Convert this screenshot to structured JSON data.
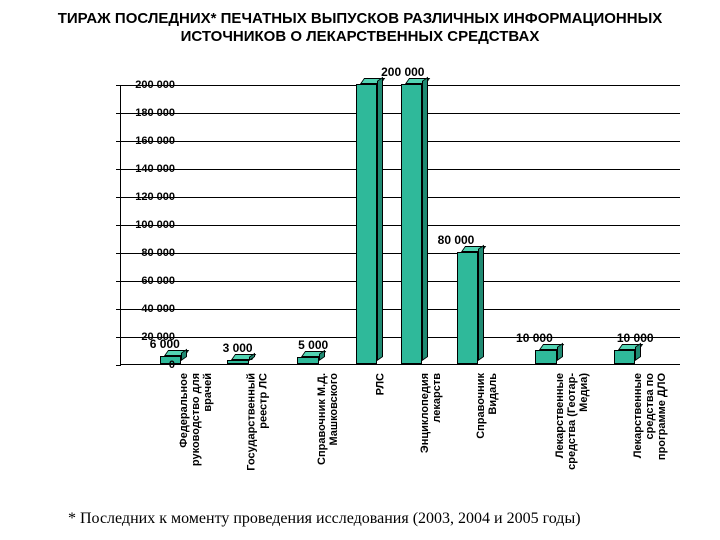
{
  "title": "ТИРАЖ ПОСЛЕДНИХ* ПЕЧАТНЫХ ВЫПУСКОВ РАЗЛИЧНЫХ ИНФОРМАЦИОННЫХ ИСТОЧНИКОВ О ЛЕКАРСТВЕННЫХ СРЕДСТВАХ",
  "footnote": "* Последних к моменту проведения исследования (2003, 2004 и 2005 годы)",
  "chart": {
    "type": "bar",
    "bar_fill": "#2fb99a",
    "bar_side": "#1f8a72",
    "bar_top": "#52d4b3",
    "background_color": "#ffffff",
    "gridline_color": "#000000",
    "title_fontsize": 15,
    "y_label_fontsize": 11,
    "data_label_fontsize": 12,
    "x_label_fontsize": 11,
    "footnote_fontsize": 16,
    "ylim": [
      0,
      200000
    ],
    "ytick_step": 20000,
    "y_ticks": [
      "0",
      "20 000",
      "40 000",
      "60 000",
      "80 000",
      "100 000",
      "120 000",
      "140 000",
      "160 000",
      "180 000",
      "200 000"
    ],
    "bar_width_pct": 3.8,
    "categories": [
      {
        "line1": "Федеральное",
        "line2": "руководство для",
        "line3": "врачей"
      },
      {
        "line1": "Государственный",
        "line2": "реестр ЛС"
      },
      {
        "line1": "Справочник М.Д.",
        "line2": "Машковского"
      },
      {
        "line1": "РЛС"
      },
      {
        "line1": "Энциклопедия",
        "line2": "лекарств"
      },
      {
        "line1": "Справочник",
        "line2": "Видаль"
      },
      {
        "line1": "Лекарственные",
        "line2": "средства (Геотар-",
        "line3": "Медиа)"
      },
      {
        "line1": "Лекарственные",
        "line2": "средства по",
        "line3": "программе ДЛО"
      }
    ],
    "values": [
      6000,
      3000,
      5000,
      200000,
      200000,
      80000,
      10000,
      10000
    ],
    "data_labels": [
      "6 000",
      "3 000",
      "5 000",
      "200 000",
      "",
      "80 000",
      "10 000",
      "10 000"
    ],
    "label_positions_pct": [
      8,
      21,
      34.5,
      50.5,
      50.5,
      60,
      74,
      92
    ],
    "bar_positions_pct": [
      7,
      19,
      31.5,
      42,
      50,
      60,
      74,
      88
    ]
  }
}
